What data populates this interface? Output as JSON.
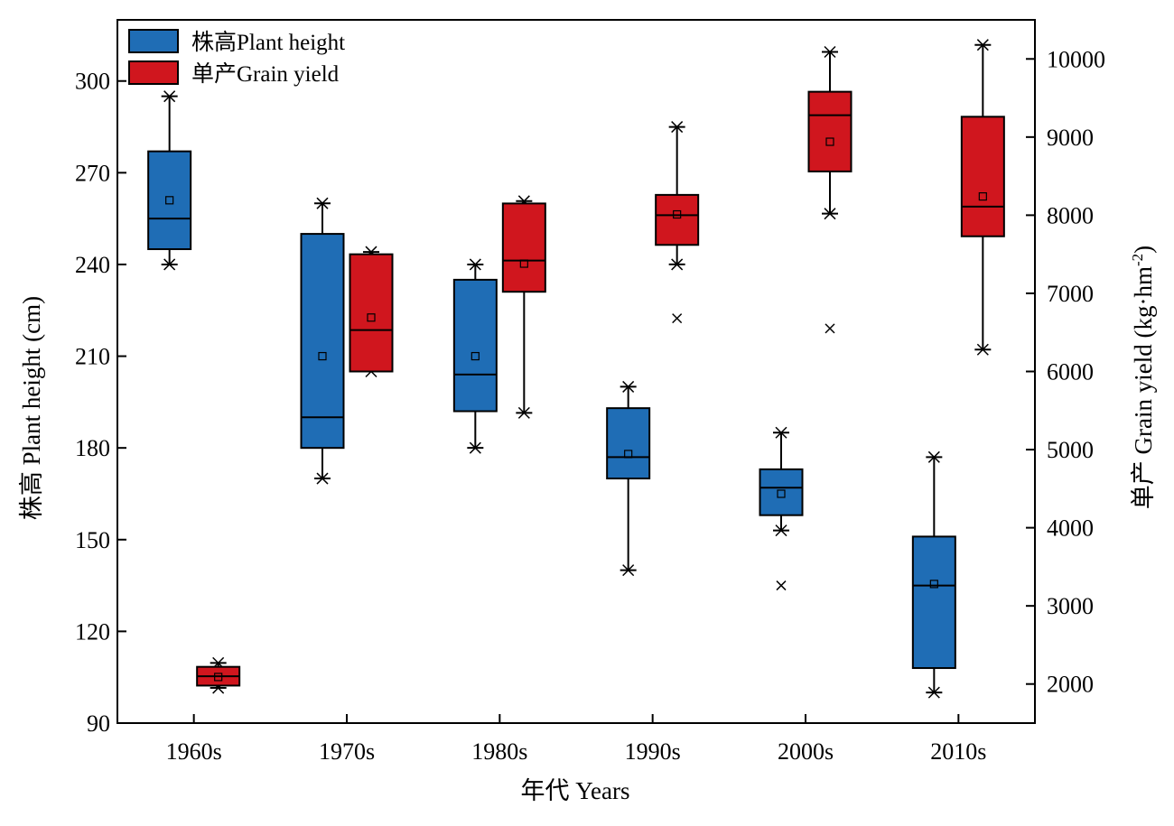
{
  "chart_data": {
    "type": "box",
    "categories": [
      "1960s",
      "1970s",
      "1980s",
      "1990s",
      "2000s",
      "2010s"
    ],
    "xlabel": "年代 Years",
    "ylabel_left": "株高 Plant height (cm)",
    "ylabel_right_main": "单产 Grain yield (kg·hm",
    "ylabel_right_sup": "-2",
    "ylabel_right_end": ")",
    "ylim_left": [
      90,
      320
    ],
    "ylim_right": [
      1500,
      10500
    ],
    "yticks_left": [
      "90",
      "120",
      "150",
      "180",
      "210",
      "240",
      "270",
      "300"
    ],
    "yticks_right": [
      "2000",
      "3000",
      "4000",
      "5000",
      "6000",
      "7000",
      "8000",
      "9000",
      "10000"
    ],
    "legend_position": "top-left",
    "series": [
      {
        "name": "株高Plant height",
        "axis": "left",
        "color": "#1f6db5",
        "boxes": [
          {
            "min": 240,
            "q1": 245,
            "median": 255,
            "q3": 277,
            "max": 295,
            "mean": 261,
            "outliers": []
          },
          {
            "min": 170,
            "q1": 180,
            "median": 190,
            "q3": 250,
            "max": 260,
            "mean": 210,
            "outliers": []
          },
          {
            "min": 180,
            "q1": 192,
            "median": 204,
            "q3": 235,
            "max": 240,
            "mean": 210,
            "outliers": []
          },
          {
            "min": 140,
            "q1": 170,
            "median": 177,
            "q3": 193,
            "max": 200,
            "mean": 178,
            "outliers": []
          },
          {
            "min": 153,
            "q1": 158,
            "median": 167,
            "q3": 173,
            "max": 185,
            "mean": 165,
            "outliers": [
              135
            ]
          },
          {
            "min": 100,
            "q1": 108,
            "median": 135,
            "q3": 151,
            "max": 177,
            "mean": 135.5,
            "outliers": []
          }
        ]
      },
      {
        "name": "单产Grain yield",
        "axis": "right",
        "color": "#d0161e",
        "boxes": [
          {
            "min": 1950,
            "q1": 1980,
            "median": 2100,
            "q3": 2220,
            "max": 2270,
            "mean": 2090,
            "outliers": []
          },
          {
            "min": 6000,
            "q1": 6000,
            "median": 6530,
            "q3": 7500,
            "max": 7530,
            "mean": 6690,
            "outliers": []
          },
          {
            "min": 5470,
            "q1": 7020,
            "median": 7420,
            "q3": 8150,
            "max": 8180,
            "mean": 7380,
            "outliers": []
          },
          {
            "min": 7370,
            "q1": 7620,
            "median": 8000,
            "q3": 8260,
            "max": 9130,
            "mean": 8010,
            "outliers": [
              6680
            ]
          },
          {
            "min": 8020,
            "q1": 8560,
            "median": 9280,
            "q3": 9580,
            "max": 10090,
            "mean": 8940,
            "outliers": [
              6550
            ]
          },
          {
            "min": 6280,
            "q1": 7730,
            "median": 8110,
            "q3": 9260,
            "max": 10180,
            "mean": 8240,
            "outliers": []
          }
        ]
      }
    ]
  }
}
